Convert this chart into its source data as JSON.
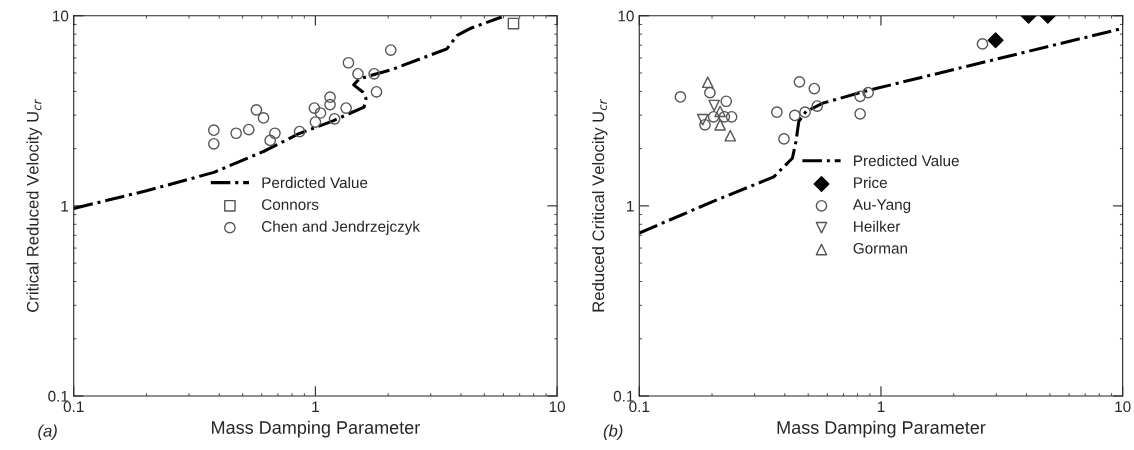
{
  "chart_data": [
    {
      "type": "scatter",
      "xlabel": "Mass Damping Parameter",
      "ylabel": "Critical Reduced Velocity U$_{cr}$",
      "log": "xy",
      "xlim": [
        0.1,
        10
      ],
      "ylim": [
        0.1,
        10
      ],
      "xticks": [
        0.1,
        1,
        10
      ],
      "yticks": [
        0.1,
        1,
        10
      ],
      "grid": false,
      "legend": "center",
      "annotations": [
        "(a)"
      ],
      "series": [
        {
          "name": "Perdicted Value",
          "type": "line",
          "color": "#000000",
          "line_style": "dashdot",
          "marker": "none",
          "x": [
            0.1,
            0.2,
            0.38,
            0.62,
            0.85,
            1.19,
            1.59,
            1.62,
            1.57,
            1.44,
            1.52,
            2.07,
            3.5,
            3.86,
            4.4,
            5.9
          ],
          "values": [
            0.97,
            1.2,
            1.5,
            1.95,
            2.39,
            2.81,
            3.31,
            3.66,
            3.97,
            4.33,
            4.66,
            5.21,
            6.7,
            7.88,
            8.6,
            9.85
          ]
        },
        {
          "name": "Connors",
          "color": "#555555",
          "marker": "square",
          "x": [
            6.6
          ],
          "values": [
            9.1
          ]
        },
        {
          "name": "Chen and Jendrzejczyk",
          "color": "#555555",
          "marker": "circle",
          "x": [
            0.38,
            0.38,
            0.47,
            0.53,
            0.57,
            0.61,
            0.68,
            0.65,
            0.86,
            0.99,
            1.0,
            1.05,
            1.15,
            1.15,
            1.2,
            1.34,
            1.37,
            1.5,
            1.75,
            1.79,
            2.05
          ],
          "values": [
            2.5,
            2.12,
            2.41,
            2.52,
            3.2,
            2.9,
            2.41,
            2.21,
            2.46,
            3.27,
            2.76,
            3.08,
            3.73,
            3.41,
            2.87,
            3.27,
            5.66,
            4.95,
            4.95,
            3.98,
            6.6
          ]
        }
      ]
    },
    {
      "type": "scatter",
      "xlabel": "Mass Damping Parameter",
      "ylabel": "Reduced Critical Velocity U$_{cr}$",
      "log": "xy",
      "xlim": [
        0.1,
        10
      ],
      "ylim": [
        0.1,
        10
      ],
      "xticks": [
        0.1,
        1,
        10
      ],
      "yticks": [
        0.1,
        1,
        10
      ],
      "grid": false,
      "legend": "center",
      "annotations": [
        "(b)"
      ],
      "series": [
        {
          "name": "Predicted Value",
          "type": "line",
          "color": "#000000",
          "line_style": "dashdot",
          "marker": "none",
          "x": [
            0.1,
            0.2,
            0.36,
            0.43,
            0.445,
            0.457,
            0.49,
            0.575,
            0.88,
            2.79,
            9.7,
            10
          ],
          "values": [
            0.72,
            1.05,
            1.42,
            1.78,
            2.18,
            2.78,
            3.14,
            3.47,
            4.04,
            5.78,
            8.5,
            8.7
          ]
        },
        {
          "name": "Price",
          "color": "#000000",
          "marker": "diamond",
          "x": [
            2.98,
            4.08,
            4.9
          ],
          "values": [
            7.43,
            10,
            10
          ]
        },
        {
          "name": "Au-Yang",
          "color": "#555555",
          "marker": "circle",
          "x": [
            0.148,
            0.196,
            0.229,
            0.187,
            0.203,
            0.241,
            0.225,
            0.371,
            0.397,
            0.44,
            0.46,
            0.485,
            0.53,
            0.545,
            0.82,
            0.885,
            0.82,
            2.63
          ],
          "values": [
            3.74,
            3.94,
            3.55,
            2.67,
            2.94,
            2.94,
            2.94,
            3.11,
            2.25,
            2.99,
            4.49,
            3.11,
            4.14,
            3.35,
            3.77,
            3.94,
            3.05,
            7.11
          ]
        },
        {
          "name": "Heilker",
          "color": "#555555",
          "marker": "triangle_down",
          "x": [
            0.204,
            0.183
          ],
          "values": [
            3.37,
            2.84
          ]
        },
        {
          "name": "Gorman",
          "color": "#555555",
          "marker": "triangle",
          "x": [
            0.192,
            0.216,
            0.216,
            0.238
          ],
          "values": [
            4.47,
            3.14,
            2.67,
            2.34
          ]
        }
      ]
    }
  ]
}
